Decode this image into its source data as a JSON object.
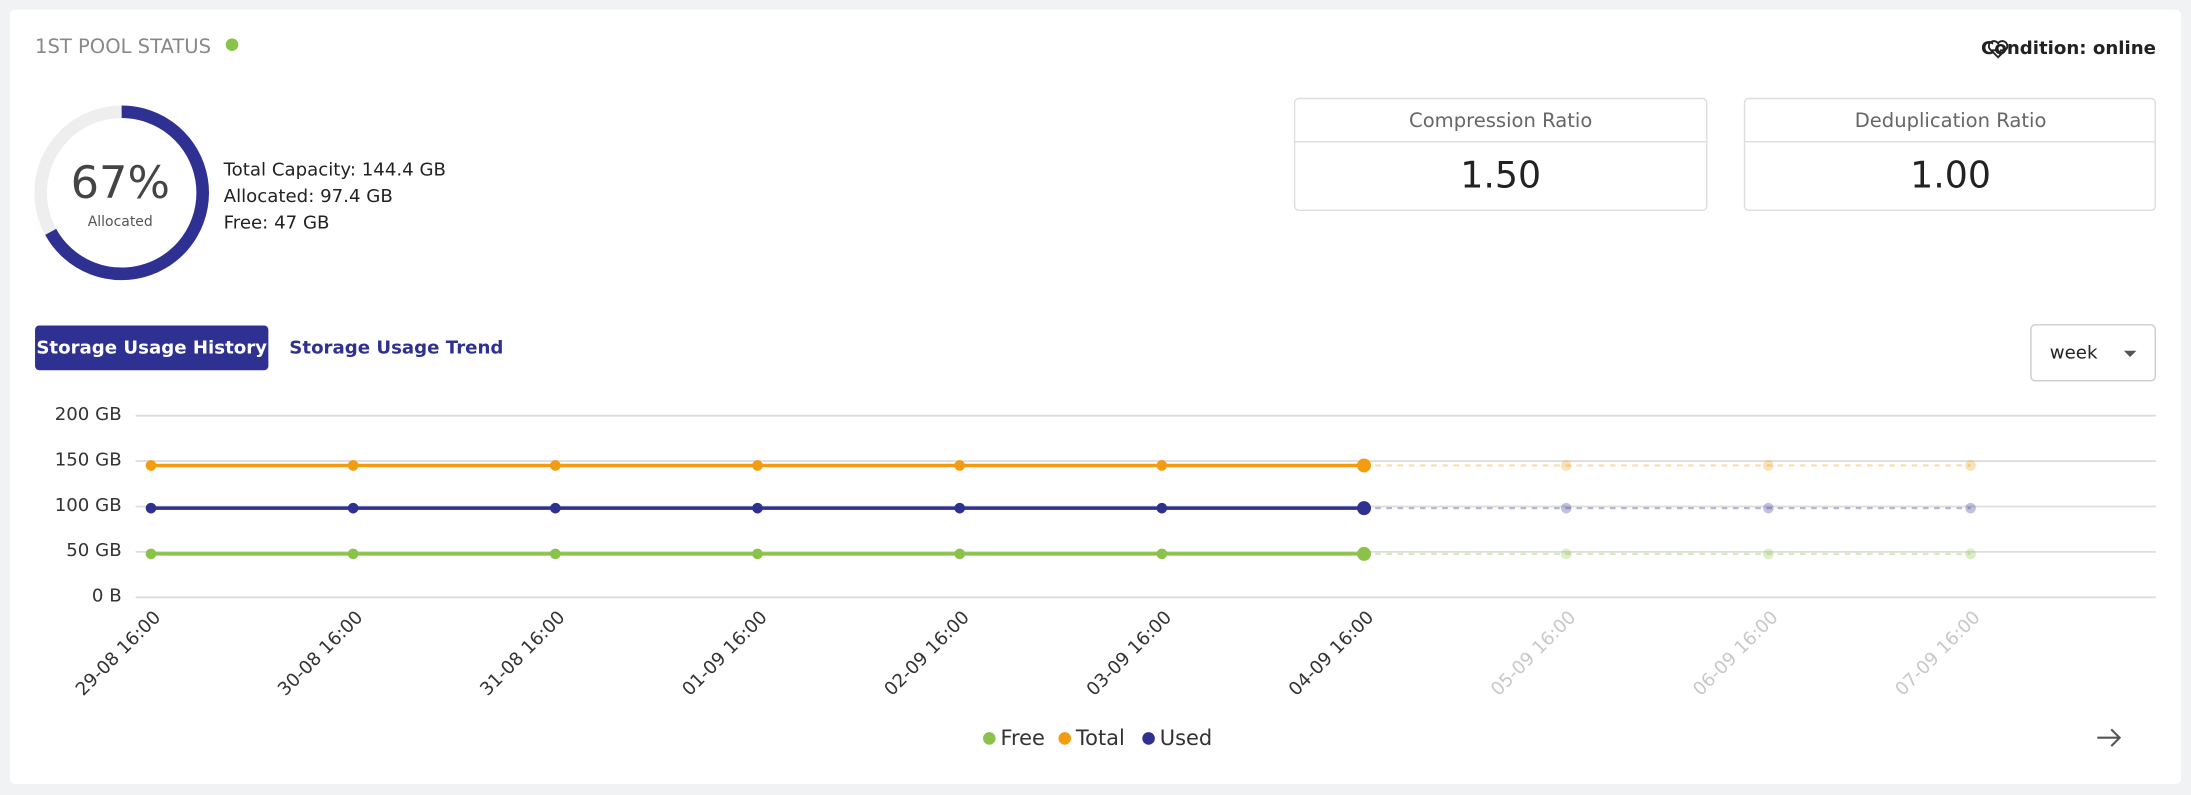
{
  "header": {
    "title": "1ST POOL STATUS",
    "condition": "Condition: online"
  },
  "gauge": {
    "percent": {
      "value": 67,
      "label": "67%"
    },
    "caption": "Allocated",
    "details": [
      "Total Capacity: 144.4 GB",
      "Allocated: 97.4 GB",
      "Free: 47 GB"
    ]
  },
  "stats": [
    {
      "label": "Compression Ratio",
      "value": "1.50"
    },
    {
      "label": "Deduplication Ratio",
      "value": "1.00"
    }
  ],
  "tabs": [
    "Storage Usage History",
    "Storage Usage Trend"
  ],
  "period": "week",
  "chart_data": {
    "type": "line",
    "categories": [
      "29-08 16:00",
      "30-08 16:00",
      "31-08 16:00",
      "01-09 16:00",
      "02-09 16:00",
      "03-09 16:00",
      "04-09 16:00",
      "05-09 16:00",
      "06-09 16:00",
      "07-09 16:00"
    ],
    "series": [
      {
        "name": "Free",
        "color": "#8bc34a",
        "values": [
          47,
          47,
          47,
          47,
          47,
          47,
          47,
          null,
          null,
          null
        ],
        "trend_values": [
          null,
          null,
          null,
          null,
          null,
          null,
          47,
          47,
          47,
          47
        ]
      },
      {
        "name": "Total",
        "color": "#f39c12",
        "values": [
          144.4,
          144.4,
          144.4,
          144.4,
          144.4,
          144.4,
          144.4,
          null,
          null,
          null
        ],
        "trend_values": [
          null,
          null,
          null,
          null,
          null,
          null,
          144.4,
          144.4,
          144.4,
          144.4
        ]
      },
      {
        "name": "Used",
        "color": "#2e3192",
        "values": [
          97.4,
          97.4,
          97.4,
          97.4,
          97.4,
          97.4,
          97.4,
          null,
          null,
          null
        ],
        "trend_values": [
          null,
          null,
          null,
          null,
          null,
          null,
          97.4,
          97.4,
          97.4,
          97.4
        ]
      }
    ],
    "ylim": [
      0,
      200
    ],
    "yticks": [
      {
        "value": 0,
        "label": "0 B"
      },
      {
        "value": 50,
        "label": "50 GB"
      },
      {
        "value": 100,
        "label": "100 GB"
      },
      {
        "value": 150,
        "label": "150 GB"
      },
      {
        "value": 200,
        "label": "200 GB"
      }
    ],
    "grid": true
  }
}
